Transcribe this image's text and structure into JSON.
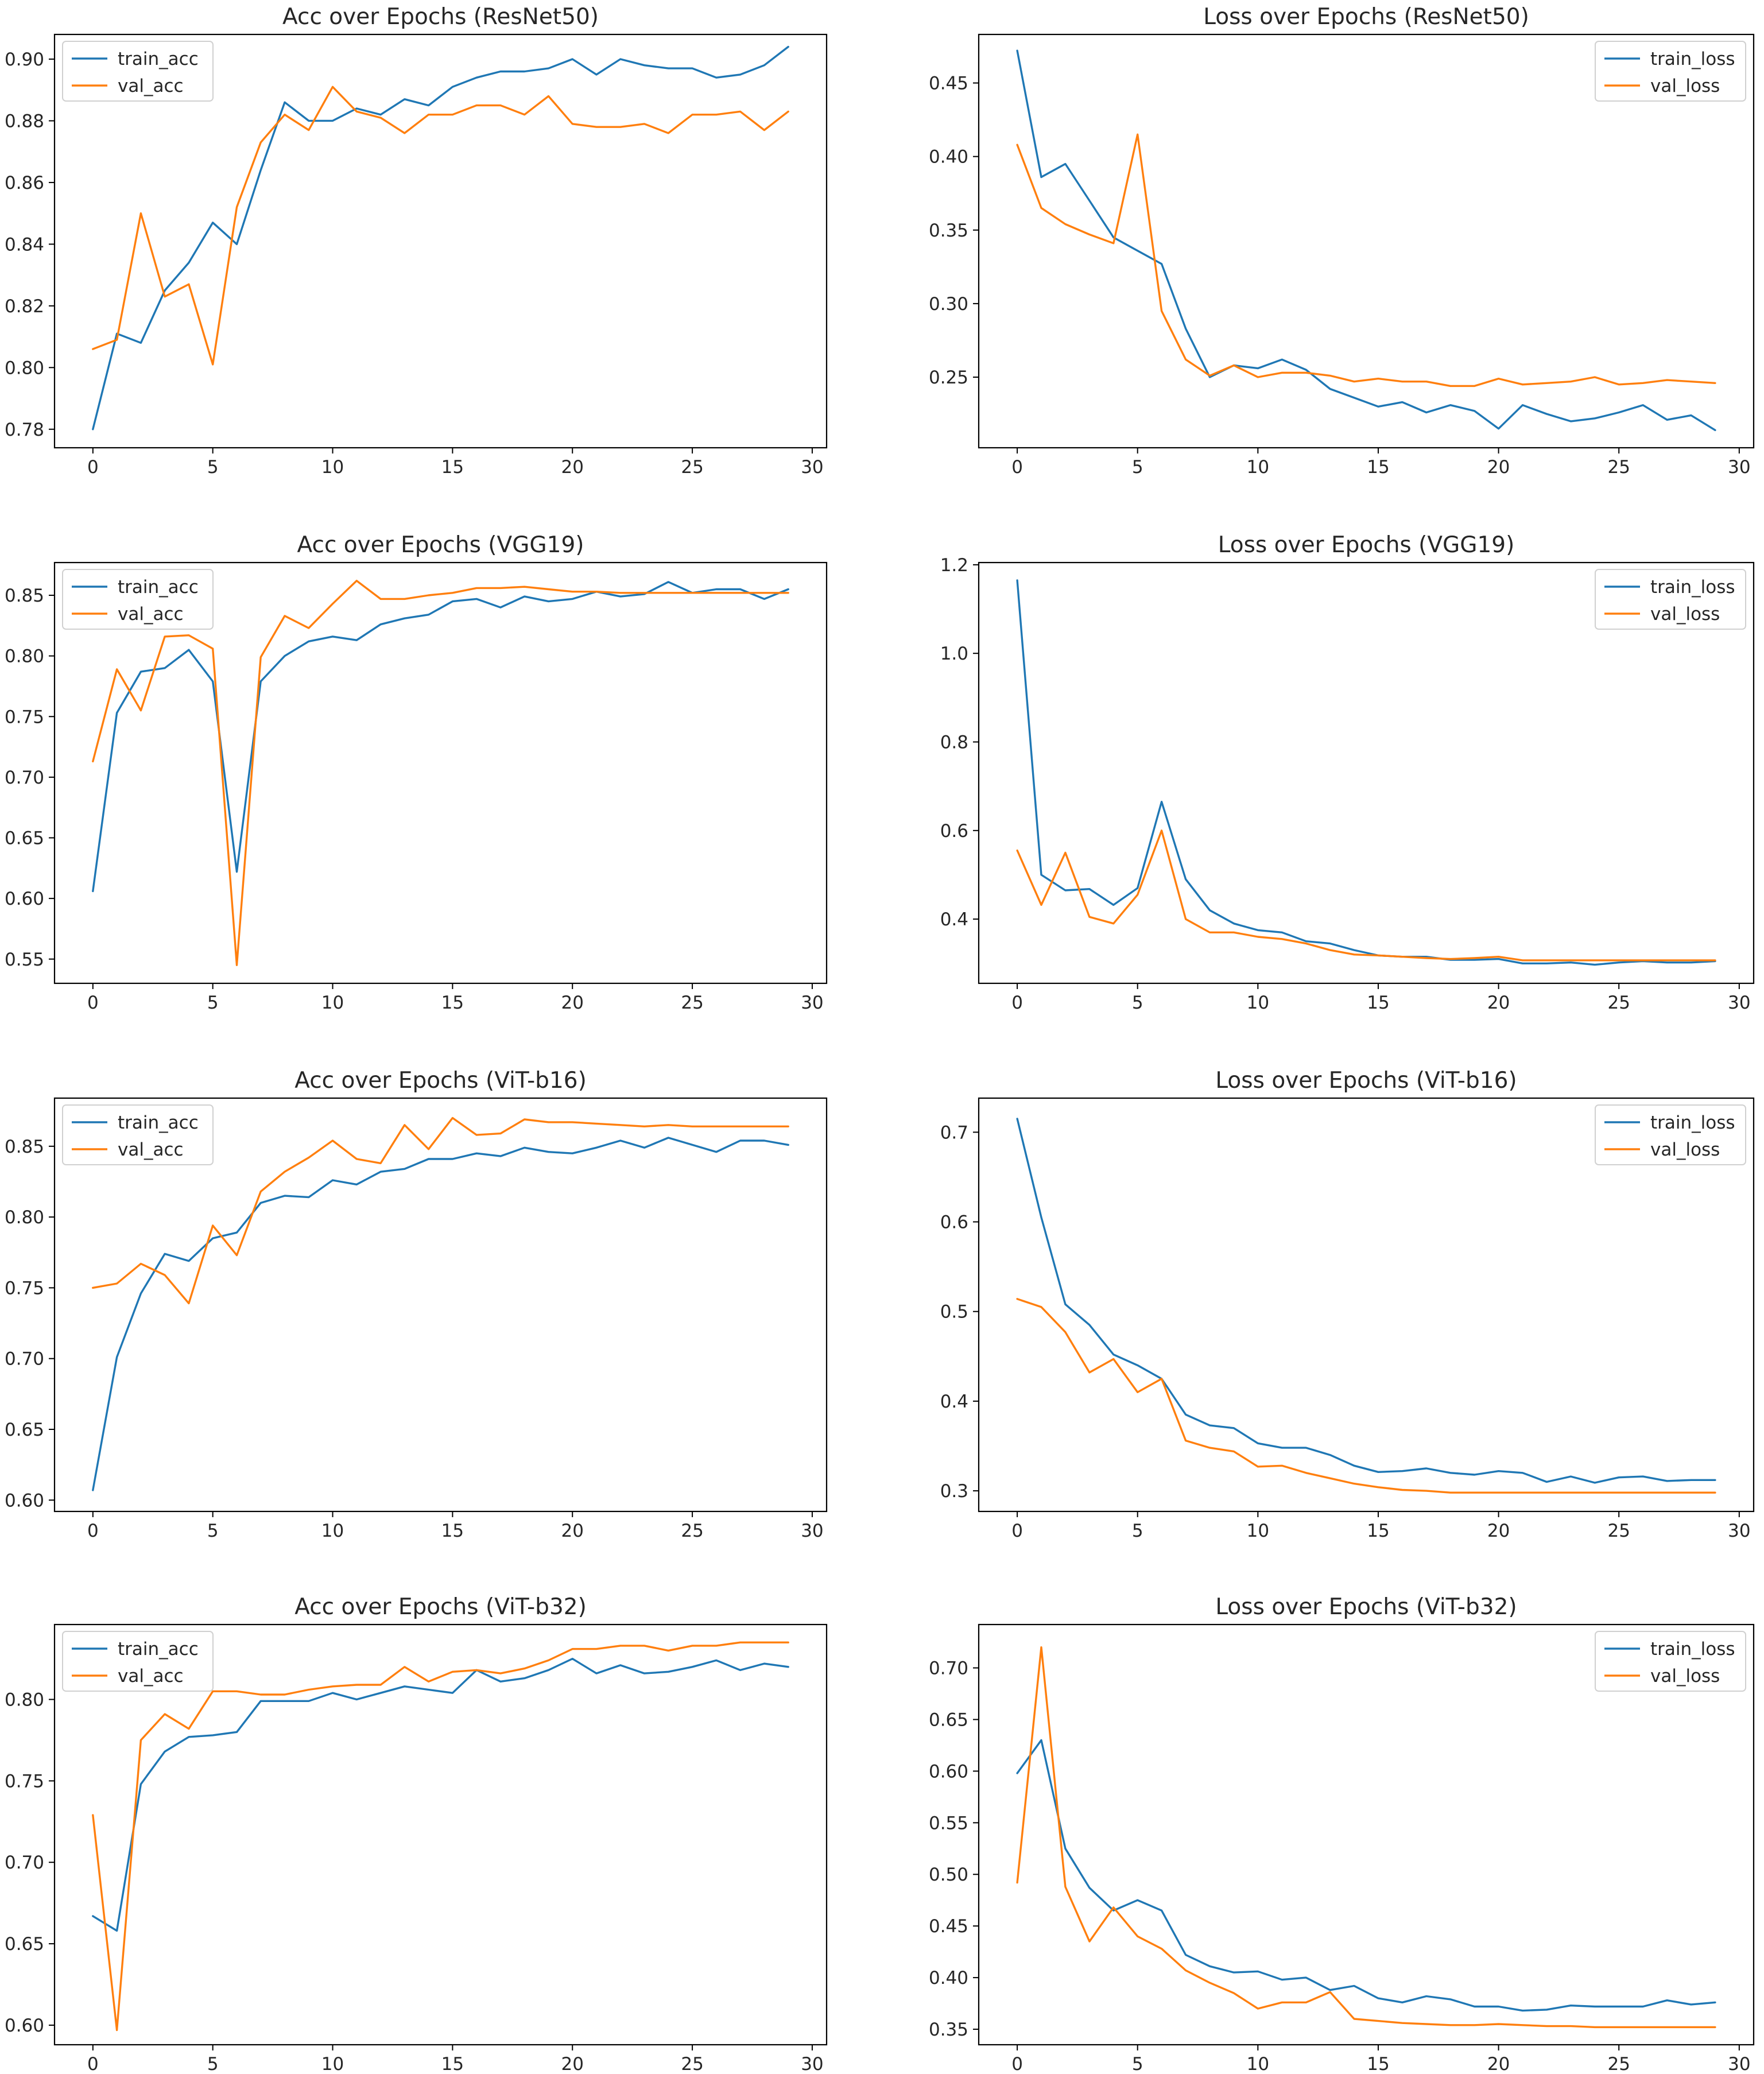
{
  "chart_data": [
    {
      "type": "line",
      "title": "Acc over Epochs (ResNet50)",
      "xlabel": "",
      "ylabel": "",
      "xlim": [
        -1.6,
        30.6
      ],
      "ylim": [
        0.774,
        0.908
      ],
      "xticks": [
        0,
        5,
        10,
        15,
        20,
        25,
        30
      ],
      "yticks": [
        0.78,
        0.8,
        0.82,
        0.84,
        0.86,
        0.88,
        0.9
      ],
      "ytick_labels": [
        "0.78",
        "0.80",
        "0.82",
        "0.84",
        "0.86",
        "0.88",
        "0.90"
      ],
      "legend_position": "upper-left",
      "series": [
        {
          "name": "train_acc",
          "color": "#1f77b4",
          "values": [
            0.78,
            0.811,
            0.808,
            0.825,
            0.834,
            0.847,
            0.84,
            0.864,
            0.886,
            0.88,
            0.88,
            0.884,
            0.882,
            0.887,
            0.885,
            0.891,
            0.894,
            0.896,
            0.896,
            0.897,
            0.9,
            0.895,
            0.9,
            0.898,
            0.897,
            0.897,
            0.894,
            0.895,
            0.898,
            0.904
          ]
        },
        {
          "name": "val_acc",
          "color": "#ff7f0e",
          "values": [
            0.806,
            0.809,
            0.85,
            0.823,
            0.827,
            0.801,
            0.852,
            0.873,
            0.882,
            0.877,
            0.891,
            0.883,
            0.881,
            0.876,
            0.882,
            0.882,
            0.885,
            0.885,
            0.882,
            0.888,
            0.879,
            0.878,
            0.878,
            0.879,
            0.876,
            0.882,
            0.882,
            0.883,
            0.877,
            0.883
          ]
        }
      ]
    },
    {
      "type": "line",
      "title": "Loss over Epochs (ResNet50)",
      "xlabel": "",
      "ylabel": "",
      "xlim": [
        -1.6,
        30.6
      ],
      "ylim": [
        0.202,
        0.483
      ],
      "xticks": [
        0,
        5,
        10,
        15,
        20,
        25,
        30
      ],
      "yticks": [
        0.25,
        0.3,
        0.35,
        0.4,
        0.45
      ],
      "ytick_labels": [
        "0.25",
        "0.30",
        "0.35",
        "0.40",
        "0.45"
      ],
      "legend_position": "upper-right",
      "series": [
        {
          "name": "train_loss",
          "color": "#1f77b4",
          "values": [
            0.472,
            0.386,
            0.395,
            0.37,
            0.345,
            0.336,
            0.327,
            0.283,
            0.25,
            0.258,
            0.256,
            0.262,
            0.255,
            0.242,
            0.236,
            0.23,
            0.233,
            0.226,
            0.231,
            0.227,
            0.215,
            0.231,
            0.225,
            0.22,
            0.222,
            0.226,
            0.231,
            0.221,
            0.224,
            0.214
          ]
        },
        {
          "name": "val_loss",
          "color": "#ff7f0e",
          "values": [
            0.408,
            0.365,
            0.354,
            0.347,
            0.341,
            0.415,
            0.295,
            0.262,
            0.251,
            0.258,
            0.25,
            0.253,
            0.253,
            0.251,
            0.247,
            0.249,
            0.247,
            0.247,
            0.244,
            0.244,
            0.249,
            0.245,
            0.246,
            0.247,
            0.25,
            0.245,
            0.246,
            0.248,
            0.247,
            0.246
          ]
        }
      ]
    },
    {
      "type": "line",
      "title": "Acc over Epochs (VGG19)",
      "xlabel": "",
      "ylabel": "",
      "xlim": [
        -1.6,
        30.6
      ],
      "ylim": [
        0.53,
        0.877
      ],
      "xticks": [
        0,
        5,
        10,
        15,
        20,
        25,
        30
      ],
      "yticks": [
        0.55,
        0.6,
        0.65,
        0.7,
        0.75,
        0.8,
        0.85
      ],
      "ytick_labels": [
        "0.55",
        "0.60",
        "0.65",
        "0.70",
        "0.75",
        "0.80",
        "0.85"
      ],
      "legend_position": "upper-left",
      "series": [
        {
          "name": "train_acc",
          "color": "#1f77b4",
          "values": [
            0.606,
            0.753,
            0.787,
            0.79,
            0.805,
            0.779,
            0.622,
            0.779,
            0.8,
            0.812,
            0.816,
            0.813,
            0.826,
            0.831,
            0.834,
            0.845,
            0.847,
            0.84,
            0.849,
            0.845,
            0.847,
            0.853,
            0.849,
            0.851,
            0.861,
            0.852,
            0.855,
            0.855,
            0.847,
            0.855
          ]
        },
        {
          "name": "val_acc",
          "color": "#ff7f0e",
          "values": [
            0.713,
            0.789,
            0.755,
            0.816,
            0.817,
            0.806,
            0.545,
            0.799,
            0.833,
            0.823,
            0.843,
            0.862,
            0.847,
            0.847,
            0.85,
            0.852,
            0.856,
            0.856,
            0.857,
            0.855,
            0.853,
            0.853,
            0.852,
            0.852,
            0.852,
            0.852,
            0.852,
            0.852,
            0.852,
            0.852
          ]
        }
      ]
    },
    {
      "type": "line",
      "title": "Loss over Epochs (VGG19)",
      "xlabel": "",
      "ylabel": "",
      "xlim": [
        -1.6,
        30.6
      ],
      "ylim": [
        0.255,
        1.205
      ],
      "xticks": [
        0,
        5,
        10,
        15,
        20,
        25,
        30
      ],
      "yticks": [
        0.4,
        0.6,
        0.8,
        1.0,
        1.2
      ],
      "ytick_labels": [
        "0.4",
        "0.6",
        "0.8",
        "1.0",
        "1.2"
      ],
      "legend_position": "upper-right",
      "series": [
        {
          "name": "train_loss",
          "color": "#1f77b4",
          "values": [
            1.165,
            0.5,
            0.465,
            0.468,
            0.432,
            0.47,
            0.665,
            0.49,
            0.42,
            0.39,
            0.375,
            0.37,
            0.35,
            0.345,
            0.33,
            0.318,
            0.315,
            0.315,
            0.308,
            0.308,
            0.31,
            0.3,
            0.3,
            0.302,
            0.297,
            0.302,
            0.305,
            0.302,
            0.302,
            0.305
          ]
        },
        {
          "name": "val_loss",
          "color": "#ff7f0e",
          "values": [
            0.555,
            0.432,
            0.55,
            0.405,
            0.39,
            0.455,
            0.6,
            0.4,
            0.37,
            0.37,
            0.36,
            0.355,
            0.345,
            0.33,
            0.32,
            0.318,
            0.315,
            0.312,
            0.31,
            0.312,
            0.315,
            0.307,
            0.307,
            0.307,
            0.307,
            0.307,
            0.307,
            0.307,
            0.307,
            0.307
          ]
        }
      ]
    },
    {
      "type": "line",
      "title": "Acc over Epochs (ViT-b16)",
      "xlabel": "",
      "ylabel": "",
      "xlim": [
        -1.6,
        30.6
      ],
      "ylim": [
        0.592,
        0.884
      ],
      "xticks": [
        0,
        5,
        10,
        15,
        20,
        25,
        30
      ],
      "yticks": [
        0.6,
        0.65,
        0.7,
        0.75,
        0.8,
        0.85
      ],
      "ytick_labels": [
        "0.60",
        "0.65",
        "0.70",
        "0.75",
        "0.80",
        "0.85"
      ],
      "legend_position": "upper-left",
      "series": [
        {
          "name": "train_acc",
          "color": "#1f77b4",
          "values": [
            0.607,
            0.701,
            0.746,
            0.774,
            0.769,
            0.785,
            0.789,
            0.81,
            0.815,
            0.814,
            0.826,
            0.823,
            0.832,
            0.834,
            0.841,
            0.841,
            0.845,
            0.843,
            0.849,
            0.846,
            0.845,
            0.849,
            0.854,
            0.849,
            0.856,
            0.851,
            0.846,
            0.854,
            0.854,
            0.851
          ]
        },
        {
          "name": "val_acc",
          "color": "#ff7f0e",
          "values": [
            0.75,
            0.753,
            0.767,
            0.759,
            0.739,
            0.794,
            0.773,
            0.818,
            0.832,
            0.842,
            0.854,
            0.841,
            0.838,
            0.865,
            0.848,
            0.87,
            0.858,
            0.859,
            0.869,
            0.867,
            0.867,
            0.866,
            0.865,
            0.864,
            0.865,
            0.864,
            0.864,
            0.864,
            0.864,
            0.864
          ]
        }
      ]
    },
    {
      "type": "line",
      "title": "Loss over Epochs (ViT-b16)",
      "xlabel": "",
      "ylabel": "",
      "xlim": [
        -1.6,
        30.6
      ],
      "ylim": [
        0.277,
        0.738
      ],
      "xticks": [
        0,
        5,
        10,
        15,
        20,
        25,
        30
      ],
      "yticks": [
        0.3,
        0.4,
        0.5,
        0.6,
        0.7
      ],
      "ytick_labels": [
        "0.3",
        "0.4",
        "0.5",
        "0.6",
        "0.7"
      ],
      "legend_position": "upper-right",
      "series": [
        {
          "name": "train_loss",
          "color": "#1f77b4",
          "values": [
            0.715,
            0.605,
            0.508,
            0.485,
            0.452,
            0.44,
            0.425,
            0.385,
            0.373,
            0.37,
            0.353,
            0.348,
            0.348,
            0.34,
            0.328,
            0.321,
            0.322,
            0.325,
            0.32,
            0.318,
            0.322,
            0.32,
            0.31,
            0.316,
            0.309,
            0.315,
            0.316,
            0.311,
            0.312,
            0.312
          ]
        },
        {
          "name": "val_loss",
          "color": "#ff7f0e",
          "values": [
            0.514,
            0.505,
            0.477,
            0.432,
            0.447,
            0.41,
            0.425,
            0.356,
            0.348,
            0.344,
            0.327,
            0.328,
            0.32,
            0.314,
            0.308,
            0.304,
            0.301,
            0.3,
            0.298,
            0.298,
            0.298,
            0.298,
            0.298,
            0.298,
            0.298,
            0.298,
            0.298,
            0.298,
            0.298,
            0.298
          ]
        }
      ]
    },
    {
      "type": "line",
      "title": "Acc over Epochs (ViT-b32)",
      "xlabel": "",
      "ylabel": "",
      "xlim": [
        -1.6,
        30.6
      ],
      "ylim": [
        0.588,
        0.846
      ],
      "xticks": [
        0,
        5,
        10,
        15,
        20,
        25,
        30
      ],
      "yticks": [
        0.6,
        0.65,
        0.7,
        0.75,
        0.8
      ],
      "ytick_labels": [
        "0.60",
        "0.65",
        "0.70",
        "0.75",
        "0.80"
      ],
      "legend_position": "upper-left",
      "series": [
        {
          "name": "train_acc",
          "color": "#1f77b4",
          "values": [
            0.667,
            0.658,
            0.748,
            0.768,
            0.777,
            0.778,
            0.78,
            0.799,
            0.799,
            0.799,
            0.804,
            0.8,
            0.804,
            0.808,
            0.806,
            0.804,
            0.818,
            0.811,
            0.813,
            0.818,
            0.825,
            0.816,
            0.821,
            0.816,
            0.817,
            0.82,
            0.824,
            0.818,
            0.822,
            0.82
          ]
        },
        {
          "name": "val_acc",
          "color": "#ff7f0e",
          "values": [
            0.729,
            0.597,
            0.775,
            0.791,
            0.782,
            0.805,
            0.805,
            0.803,
            0.803,
            0.806,
            0.808,
            0.809,
            0.809,
            0.82,
            0.811,
            0.817,
            0.818,
            0.816,
            0.819,
            0.824,
            0.831,
            0.831,
            0.833,
            0.833,
            0.83,
            0.833,
            0.833,
            0.835,
            0.835,
            0.835
          ]
        }
      ]
    },
    {
      "type": "line",
      "title": "Loss over Epochs (ViT-b32)",
      "xlabel": "",
      "ylabel": "",
      "xlim": [
        -1.6,
        30.6
      ],
      "ylim": [
        0.335,
        0.742
      ],
      "xticks": [
        0,
        5,
        10,
        15,
        20,
        25,
        30
      ],
      "yticks": [
        0.35,
        0.4,
        0.45,
        0.5,
        0.55,
        0.6,
        0.65,
        0.7
      ],
      "ytick_labels": [
        "0.35",
        "0.40",
        "0.45",
        "0.50",
        "0.55",
        "0.60",
        "0.65",
        "0.70"
      ],
      "legend_position": "upper-right",
      "series": [
        {
          "name": "train_loss",
          "color": "#1f77b4",
          "values": [
            0.598,
            0.63,
            0.525,
            0.487,
            0.465,
            0.475,
            0.465,
            0.422,
            0.411,
            0.405,
            0.406,
            0.398,
            0.4,
            0.388,
            0.392,
            0.38,
            0.376,
            0.382,
            0.379,
            0.372,
            0.372,
            0.368,
            0.369,
            0.373,
            0.372,
            0.372,
            0.372,
            0.378,
            0.374,
            0.376
          ]
        },
        {
          "name": "val_loss",
          "color": "#ff7f0e",
          "values": [
            0.492,
            0.72,
            0.488,
            0.435,
            0.468,
            0.44,
            0.428,
            0.407,
            0.395,
            0.385,
            0.37,
            0.376,
            0.376,
            0.386,
            0.36,
            0.358,
            0.356,
            0.355,
            0.354,
            0.354,
            0.355,
            0.354,
            0.353,
            0.353,
            0.352,
            0.352,
            0.352,
            0.352,
            0.352,
            0.352
          ]
        }
      ]
    }
  ]
}
